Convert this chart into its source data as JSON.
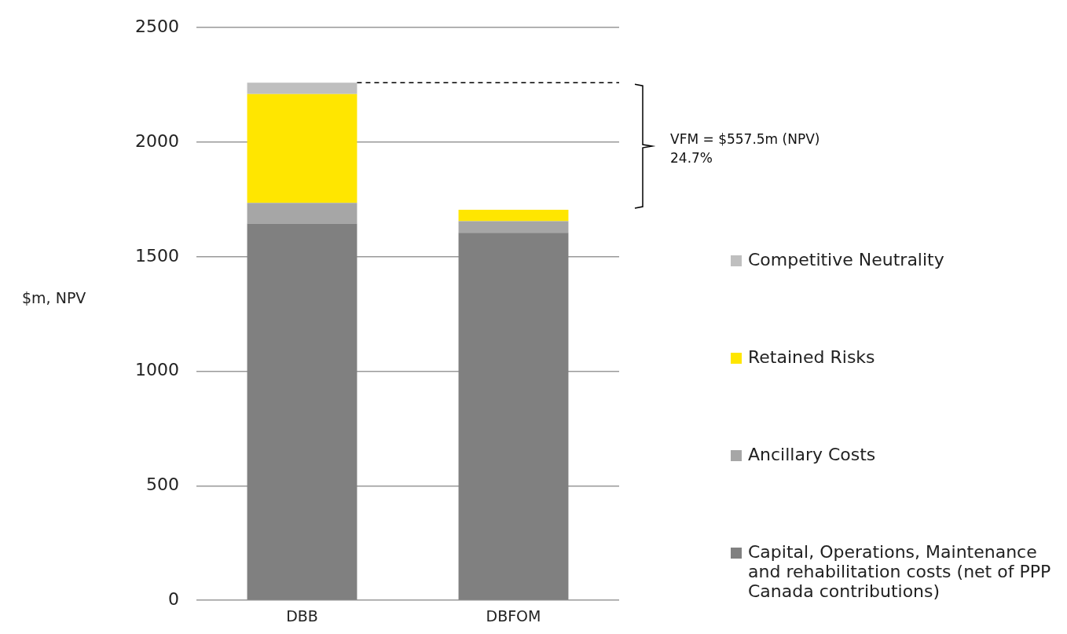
{
  "chart_data": {
    "type": "bar",
    "stacked": true,
    "ylabel": "$m, NPV",
    "categories": [
      "DBB",
      "DBFOM"
    ],
    "series": [
      {
        "name": "Capital, Operations, Maintenance and rehabilitation costs (net of PPP Canada contributions)",
        "color": "#808080",
        "values": [
          1645,
          1605
        ]
      },
      {
        "name": "Ancillary Costs",
        "color": "#a6a6a6",
        "values": [
          90,
          50
        ]
      },
      {
        "name": "Retained Risks",
        "color": "#ffe600",
        "values": [
          475,
          50
        ]
      },
      {
        "name": "Competitive Neutrality",
        "color": "#bfbfbf",
        "values": [
          50,
          0
        ]
      }
    ],
    "ref_lines": [
      {
        "axis": "y",
        "value": 2260,
        "color": "#000000",
        "line_style": "dashed"
      }
    ],
    "ylim": [
      0,
      2500
    ],
    "yticks": [
      0,
      500,
      1000,
      1500,
      2000,
      2500
    ],
    "grid": "y",
    "legend": "right",
    "annotations": [
      "VFM = $557.5m (NPV)\n24.7%"
    ]
  }
}
